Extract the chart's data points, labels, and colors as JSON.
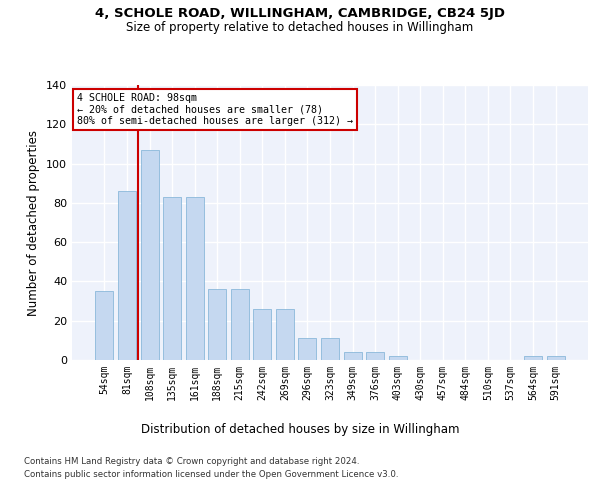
{
  "title": "4, SCHOLE ROAD, WILLINGHAM, CAMBRIDGE, CB24 5JD",
  "subtitle": "Size of property relative to detached houses in Willingham",
  "xlabel": "Distribution of detached houses by size in Willingham",
  "ylabel": "Number of detached properties",
  "categories": [
    "54sqm",
    "81sqm",
    "108sqm",
    "135sqm",
    "161sqm",
    "188sqm",
    "215sqm",
    "242sqm",
    "269sqm",
    "296sqm",
    "323sqm",
    "349sqm",
    "376sqm",
    "403sqm",
    "430sqm",
    "457sqm",
    "484sqm",
    "510sqm",
    "537sqm",
    "564sqm",
    "591sqm"
  ],
  "values": [
    35,
    86,
    107,
    83,
    83,
    36,
    36,
    26,
    26,
    11,
    11,
    4,
    4,
    2,
    0,
    0,
    0,
    0,
    0,
    2,
    2
  ],
  "bar_color": "#c5d8f0",
  "bar_edgecolor": "#7bafd4",
  "bg_color": "#eef2fb",
  "grid_color": "#ffffff",
  "annotation_text": "4 SCHOLE ROAD: 98sqm\n← 20% of detached houses are smaller (78)\n80% of semi-detached houses are larger (312) →",
  "annotation_box_color": "#ffffff",
  "annotation_box_edgecolor": "#cc0000",
  "ylim": [
    0,
    140
  ],
  "yticks": [
    0,
    20,
    40,
    60,
    80,
    100,
    120,
    140
  ],
  "footer1": "Contains HM Land Registry data © Crown copyright and database right 2024.",
  "footer2": "Contains public sector information licensed under the Open Government Licence v3.0."
}
